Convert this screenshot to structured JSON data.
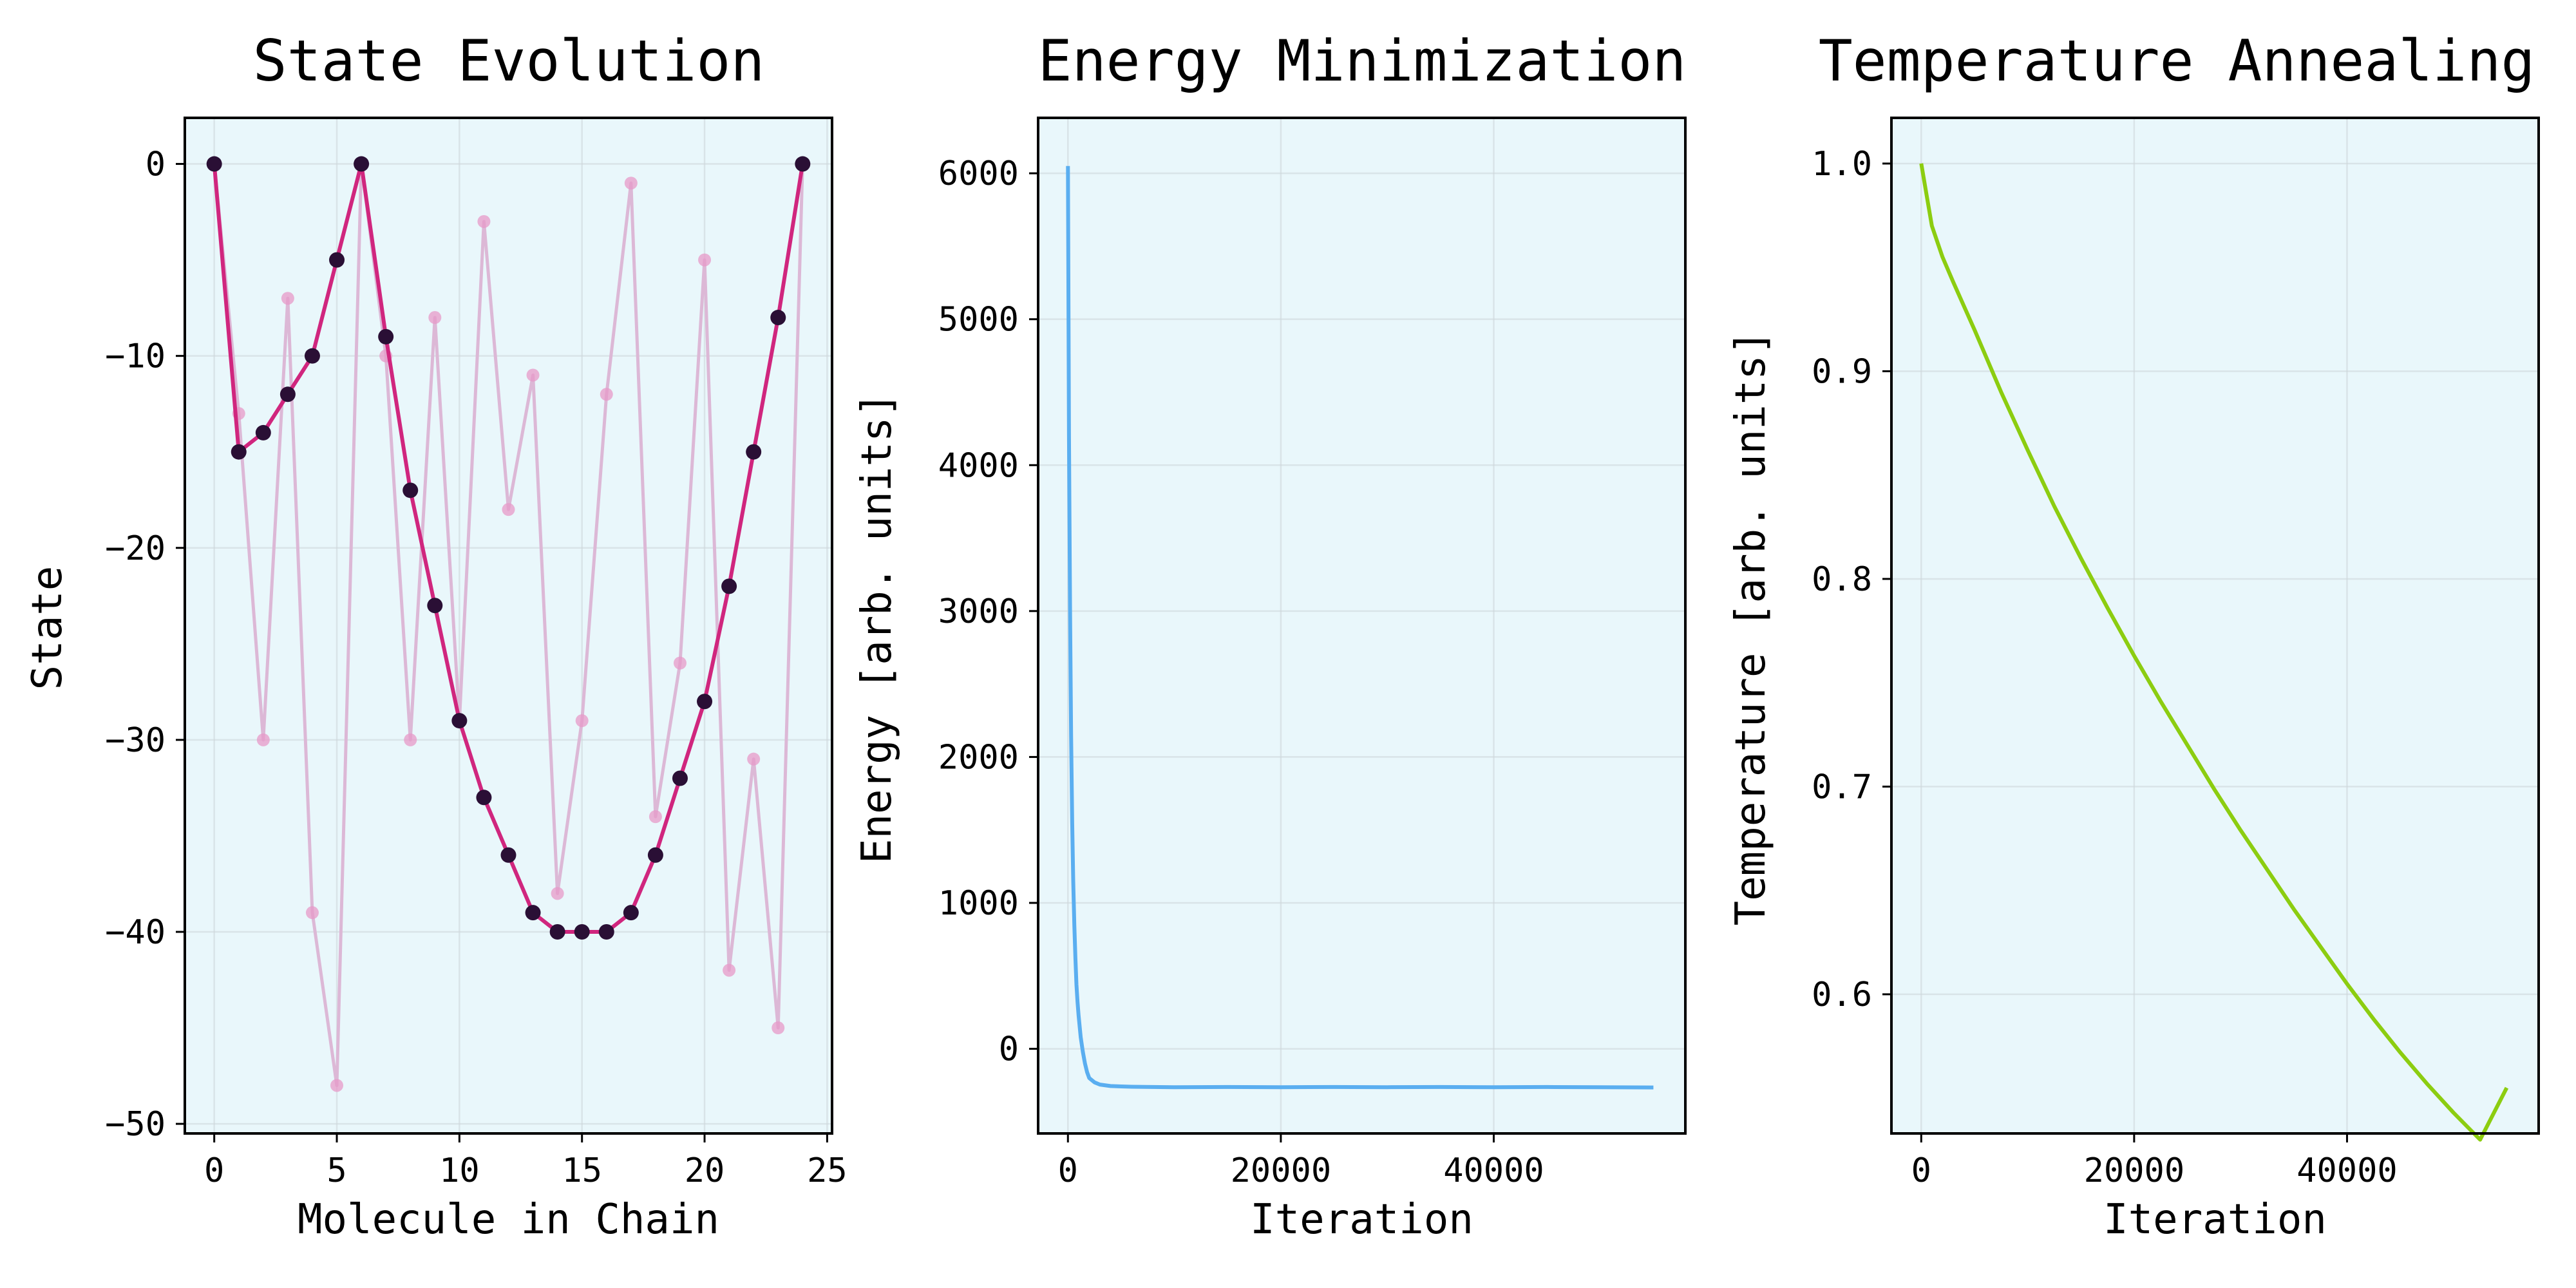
{
  "chart_data": [
    {
      "type": "line",
      "title": "State Evolution",
      "xlabel": "Molecule in Chain",
      "ylabel": "State",
      "xlim": [
        -1.2,
        25.2
      ],
      "ylim": [
        -50.5,
        2.4
      ],
      "xticks": [
        0,
        5,
        10,
        15,
        20,
        25
      ],
      "yticks": [
        0,
        -10,
        -20,
        -30,
        -40,
        -50
      ],
      "ytick_labels": [
        "0",
        "−10",
        "−20",
        "−30",
        "−40",
        "−50"
      ],
      "grid": true,
      "series": [
        {
          "color": "#dcb8d6",
          "marker_color": "#e79ac8",
          "x": [
            0,
            1,
            2,
            3,
            4,
            5,
            6,
            7,
            8,
            9,
            10,
            11,
            12,
            13,
            14,
            15,
            16,
            17,
            18,
            19,
            20,
            21,
            22,
            23,
            24
          ],
          "y": [
            0,
            -13,
            -30,
            -7,
            -39,
            -48,
            0,
            -10,
            -30,
            -8,
            -29,
            -3,
            -18,
            -11,
            -38,
            -29,
            -12,
            -1,
            -34,
            -26,
            -5,
            -42,
            -31,
            -45,
            0
          ]
        },
        {
          "color": "#d0267e",
          "marker_color": "#2a0f35",
          "x": [
            0,
            1,
            2,
            3,
            4,
            5,
            6,
            7,
            8,
            9,
            10,
            11,
            12,
            13,
            14,
            15,
            16,
            17,
            18,
            19,
            20,
            21,
            22,
            23,
            24
          ],
          "y": [
            0,
            -15,
            -14,
            -12,
            -10,
            -5,
            0,
            -9,
            -17,
            -23,
            -29,
            -33,
            -36,
            -39,
            -40,
            -40,
            -40,
            -39,
            -36,
            -32,
            -28,
            -22,
            -15,
            -8,
            0
          ]
        }
      ]
    },
    {
      "type": "line",
      "title": "Energy Minimization",
      "xlabel": "Iteration",
      "ylabel": "Energy [arb. units]",
      "xlim": [
        -2800,
        58000
      ],
      "ylim": [
        -580,
        6380
      ],
      "xticks": [
        0,
        20000,
        40000
      ],
      "yticks": [
        0,
        1000,
        2000,
        3000,
        4000,
        5000,
        6000
      ],
      "ytick_labels": [
        "0",
        "1000",
        "2000",
        "3000",
        "4000",
        "5000",
        "6000"
      ],
      "grid": true,
      "series": [
        {
          "color": "#5aaef0",
          "x": [
            0,
            100,
            200,
            300,
            400,
            500,
            600,
            700,
            800,
            900,
            1000,
            1200,
            1400,
            1600,
            1800,
            2000,
            2500,
            3000,
            4000,
            5000,
            6000,
            8000,
            10000,
            15000,
            20000,
            25000,
            30000,
            35000,
            40000,
            45000,
            50000,
            55000
          ],
          "y": [
            6050,
            4200,
            3000,
            2150,
            1550,
            1150,
            850,
            620,
            440,
            320,
            230,
            80,
            -20,
            -100,
            -160,
            -200,
            -230,
            -245,
            -255,
            -258,
            -260,
            -262,
            -263,
            -262,
            -263,
            -262,
            -263,
            -262,
            -263,
            -262,
            -263,
            -265
          ]
        }
      ]
    },
    {
      "type": "line",
      "title": "Temperature Annealing",
      "xlabel": "Iteration",
      "ylabel": "Temperature [arb. units]",
      "xlim": [
        -2800,
        58000
      ],
      "ylim": [
        0.533,
        1.022
      ],
      "xticks": [
        0,
        20000,
        40000
      ],
      "yticks": [
        0.6,
        0.7,
        0.8,
        0.9,
        1.0
      ],
      "ytick_labels": [
        "0.6",
        "0.7",
        "0.8",
        "0.9",
        "1.0"
      ],
      "grid": true,
      "series": [
        {
          "color": "#8ccd10",
          "x": [
            0,
            500,
            1000,
            2000,
            3000,
            5000,
            7500,
            10000,
            12500,
            15000,
            17500,
            20000,
            22500,
            25000,
            27500,
            30000,
            32500,
            35000,
            37500,
            40000,
            42500,
            45000,
            47500,
            50000,
            52500,
            55000
          ],
          "y": [
            1.0,
            0.985,
            0.97,
            0.955,
            0.943,
            0.92,
            0.89,
            0.862,
            0.835,
            0.81,
            0.786,
            0.763,
            0.741,
            0.72,
            0.699,
            0.679,
            0.66,
            0.641,
            0.623,
            0.605,
            0.588,
            0.572,
            0.557,
            0.543,
            0.53,
            0.555
          ]
        }
      ]
    }
  ]
}
